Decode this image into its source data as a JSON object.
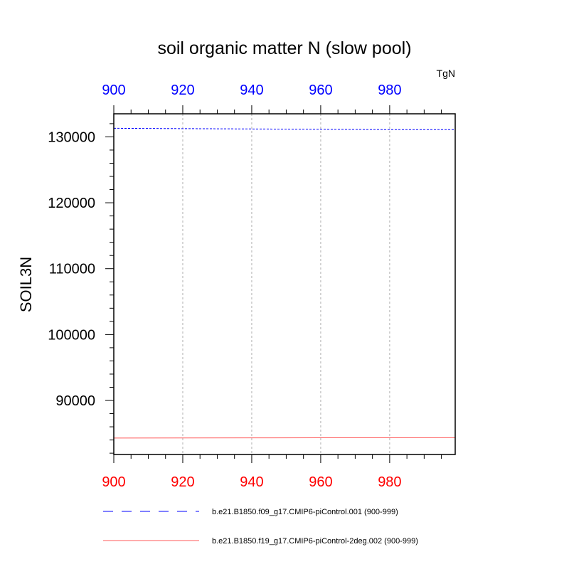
{
  "chart_data": {
    "type": "line",
    "title": "soil organic matter N (slow pool)",
    "units": "TgN",
    "ylabel": "SOIL3N",
    "xlabel": "",
    "xlim": [
      900,
      999
    ],
    "ylim": [
      81800,
      133500
    ],
    "xticks_major": [
      900,
      920,
      940,
      960,
      980
    ],
    "yticks_major": [
      90000,
      100000,
      110000,
      120000,
      130000
    ],
    "grid": "vertical dotted",
    "top_axis": {
      "color": "#0000ff",
      "ticks": [
        900,
        920,
        940,
        960,
        980
      ]
    },
    "bottom_axis": {
      "color": "#ff0000",
      "ticks": [
        900,
        920,
        940,
        960,
        980
      ]
    },
    "series": [
      {
        "name": "b.e21.B1850.f09_g17.CMIP6-piControl.001 (900-999)",
        "color": "#0000ff",
        "dash": "dashed",
        "x": [
          900,
          920,
          940,
          960,
          980,
          999
        ],
        "y": [
          131300,
          131250,
          131200,
          131150,
          131100,
          131100
        ]
      },
      {
        "name": "b.e21.B1850.f19_g17.CMIP6-piControl-2deg.002 (900-999)",
        "color": "#ff5a5a",
        "dash": "solid",
        "x": [
          900,
          920,
          940,
          960,
          980,
          999
        ],
        "y": [
          84300,
          84310,
          84320,
          84330,
          84340,
          84350
        ]
      }
    ],
    "legend": "bottom"
  }
}
